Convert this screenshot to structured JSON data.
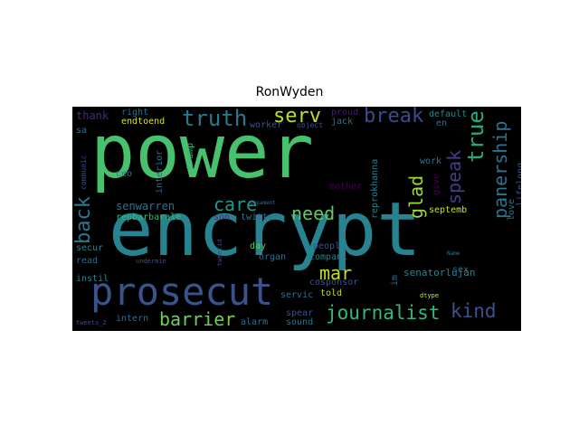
{
  "title": "RonWyden",
  "words": {
    "power": {
      "text": "power",
      "color": "#48c16e"
    },
    "encrypt": {
      "text": "encrypt",
      "color": "#26838f"
    },
    "prosecut": {
      "text": "prosecut",
      "color": "#3a538b"
    },
    "truth": {
      "text": "truth",
      "color": "#2a788e"
    },
    "serv": {
      "text": "serv",
      "color": "#bddf26"
    },
    "break": {
      "text": "break",
      "color": "#3e4a89"
    },
    "true": {
      "text": "true",
      "color": "#25ab82"
    },
    "panership": {
      "text": "panership",
      "color": "#2c728e"
    },
    "speak": {
      "text": "speak",
      "color": "#433e85"
    },
    "back": {
      "text": "back",
      "color": "#2a788e"
    },
    "care": {
      "text": "care",
      "color": "#1f9a8a"
    },
    "need": {
      "text": "need",
      "color": "#5ec962"
    },
    "glad": {
      "text": "glad",
      "color": "#a0da39"
    },
    "mar": {
      "text": "mar",
      "color": "#c2df23"
    },
    "journalist": {
      "text": "journalist",
      "color": "#35b779"
    },
    "kind": {
      "text": "kind",
      "color": "#3b528b"
    },
    "barrier": {
      "text": "barrier",
      "color": "#6ece58"
    },
    "thank": {
      "text": "thank",
      "color": "#482878"
    },
    "right": {
      "text": "right",
      "color": "#2c728e"
    },
    "endtoend": {
      "text": "endtoend",
      "color": "#d8e219"
    },
    "worker": {
      "text": "worker",
      "color": "#3b528b"
    },
    "object": {
      "text": "object",
      "color": "#3b528b"
    },
    "proud": {
      "text": "proud",
      "color": "#481a6c"
    },
    "jack": {
      "text": "jack",
      "color": "#2c728e"
    },
    "default": {
      "text": "default",
      "color": "#23898e"
    },
    "en": {
      "text": "en",
      "color": "#2c728e"
    },
    "sa": {
      "text": "sa",
      "color": "#2c728e"
    },
    "communic": {
      "text": "communic",
      "color": "#3e4a89"
    },
    "ceo": {
      "text": "ceo",
      "color": "#2a788e"
    },
    "interior": {
      "text": "interior",
      "color": "#31688e"
    },
    "trump": {
      "text": "trump",
      "color": "#35b779"
    },
    "reprokhanna": {
      "text": "reprokhanna",
      "color": "#26828e"
    },
    "mother": {
      "text": "mother",
      "color": "#440154"
    },
    "work": {
      "text": "work",
      "color": "#2a788e"
    },
    "give": {
      "text": "give",
      "color": "#440154"
    },
    "lifelong": {
      "text": "lifelong",
      "color": "#3b528b"
    },
    "love": {
      "text": "love",
      "color": "#2c728e"
    },
    "septemb": {
      "text": "septemb",
      "color": "#c8e020"
    },
    "senwarren": {
      "text": "senwarren",
      "color": "#2c728e"
    },
    "repbarbarale": {
      "text": "repbarbarale",
      "color": "#35b779"
    },
    "son": {
      "text": "son",
      "color": "#482878"
    },
    "twitter": {
      "text": "twitter",
      "color": "#2c728e"
    },
    "depament": {
      "text": "depament",
      "color": "#31688e"
    },
    "secur": {
      "text": "secur",
      "color": "#26828e"
    },
    "read": {
      "text": "read",
      "color": "#31688e"
    },
    "undermin": {
      "text": "undermin",
      "color": "#3e4a89"
    },
    "day": {
      "text": "day",
      "color": "#5ec962"
    },
    "organ": {
      "text": "organ",
      "color": "#2c728e"
    },
    "peopl": {
      "text": "peopl",
      "color": "#3b528b"
    },
    "compani": {
      "text": "compani",
      "color": "#26828e"
    },
    "senatorlujan": {
      "text": "senatorlujan",
      "color": "#25848e"
    },
    "name": {
      "text": "Name",
      "color": "#2c728e"
    },
    "sex": {
      "text": "sex",
      "color": "#2c728e"
    },
    "im": {
      "text": "im",
      "color": "#31688e"
    },
    "instil": {
      "text": "instil",
      "color": "#26828e"
    },
    "cosponsor": {
      "text": "cosponsor",
      "color": "#3b528b"
    },
    "told": {
      "text": "told",
      "color": "#b5de2b"
    },
    "servic": {
      "text": "servic",
      "color": "#2c728e"
    },
    "dtype": {
      "text": "dtype",
      "color": "#d8e219"
    },
    "spear": {
      "text": "spear",
      "color": "#3b528b"
    },
    "intern": {
      "text": "intern",
      "color": "#31688e"
    },
    "alarm": {
      "text": "alarm",
      "color": "#2c728e"
    },
    "sound": {
      "text": "sound",
      "color": "#2c728e"
    },
    "tweets": {
      "text": "tweets_2",
      "color": "#3e4a89"
    },
    "tweetid": {
      "text": "tweetid",
      "color": "#3e4a89"
    }
  }
}
